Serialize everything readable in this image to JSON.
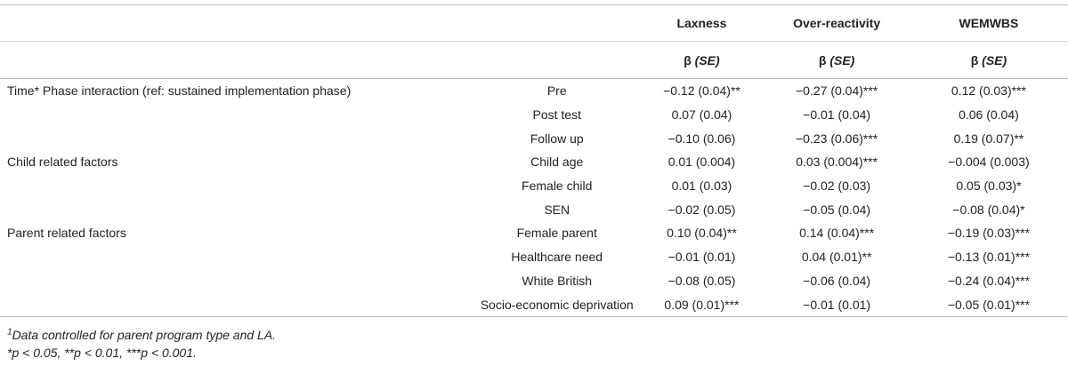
{
  "header": {
    "columns": [
      "Laxness",
      "Over-reactivity",
      "WEMWBS"
    ],
    "beta_symbol": "β",
    "se_label": "(SE)"
  },
  "rows": [
    {
      "group": "Time* Phase interaction (ref: sustained implementation phase)",
      "label": "Pre",
      "values": [
        "−0.12 (0.04)**",
        "−0.27 (0.04)***",
        "0.12 (0.03)***"
      ]
    },
    {
      "group": "",
      "label": "Post test",
      "values": [
        "0.07 (0.04)",
        "−0.01 (0.04)",
        "0.06 (0.04)"
      ]
    },
    {
      "group": "",
      "label": "Follow up",
      "values": [
        "−0.10 (0.06)",
        "−0.23 (0.06)***",
        "0.19 (0.07)**"
      ]
    },
    {
      "group": "Child related factors",
      "label": "Child age",
      "values": [
        "0.01 (0.004)",
        "0.03 (0.004)***",
        "−0.004 (0.003)"
      ]
    },
    {
      "group": "",
      "label": "Female child",
      "values": [
        "0.01 (0.03)",
        "−0.02 (0.03)",
        "0.05 (0.03)*"
      ]
    },
    {
      "group": "",
      "label": "SEN",
      "values": [
        "−0.02 (0.05)",
        "−0.05 (0.04)",
        "−0.08 (0.04)*"
      ]
    },
    {
      "group": "Parent related factors",
      "label": "Female parent",
      "values": [
        "0.10 (0.04)**",
        "0.14 (0.04)***",
        "−0.19 (0.03)***"
      ]
    },
    {
      "group": "",
      "label": "Healthcare need",
      "values": [
        "−0.01 (0.01)",
        "0.04 (0.01)**",
        "−0.13 (0.01)***"
      ]
    },
    {
      "group": "",
      "label": "White British",
      "values": [
        "−0.08 (0.05)",
        "−0.06 (0.04)",
        "−0.24 (0.04)***"
      ]
    },
    {
      "group": "",
      "label": "Socio-economic deprivation",
      "values": [
        "0.09 (0.01)***",
        "−0.01 (0.01)",
        "−0.05 (0.01)***"
      ]
    }
  ],
  "notes": {
    "footnote_mark": "1",
    "footnote_text": "Data controlled for parent program type and LA.",
    "significance": "*p < 0.05, **p < 0.01, ***p < 0.001."
  }
}
